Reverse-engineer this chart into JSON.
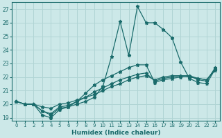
{
  "xlabel": "Humidex (Indice chaleur)",
  "bg_color": "#cce8e8",
  "grid_color": "#b0d4d4",
  "line_color": "#1a6b6b",
  "xlim": [
    -0.5,
    23.5
  ],
  "ylim": [
    18.8,
    27.5
  ],
  "xticks": [
    0,
    1,
    2,
    3,
    4,
    5,
    6,
    7,
    8,
    9,
    10,
    11,
    12,
    13,
    14,
    15,
    16,
    17,
    18,
    19,
    20,
    21,
    22,
    23
  ],
  "yticks": [
    19,
    20,
    21,
    22,
    23,
    24,
    25,
    26,
    27
  ],
  "series": [
    [
      20.2,
      20.0,
      20.0,
      19.2,
      19.0,
      19.6,
      19.8,
      20.0,
      20.2,
      20.5,
      21.3,
      23.5,
      26.1,
      23.6,
      27.2,
      26.0,
      26.0,
      25.5,
      24.9,
      23.1,
      21.9,
      21.6,
      21.5,
      22.6
    ],
    [
      20.2,
      20.0,
      20.0,
      19.5,
      19.2,
      19.7,
      19.8,
      20.2,
      20.8,
      21.4,
      21.8,
      22.1,
      22.4,
      22.7,
      22.9,
      22.9,
      21.6,
      21.8,
      21.9,
      22.0,
      22.1,
      21.8,
      21.7,
      22.7
    ],
    [
      20.2,
      20.0,
      20.0,
      19.5,
      19.3,
      19.8,
      19.9,
      20.2,
      20.5,
      20.9,
      21.2,
      21.5,
      21.8,
      22.0,
      22.2,
      22.3,
      21.7,
      21.9,
      22.0,
      22.1,
      22.1,
      21.9,
      21.8,
      22.6
    ],
    [
      20.2,
      20.0,
      20.0,
      19.8,
      19.7,
      20.0,
      20.1,
      20.3,
      20.5,
      20.7,
      21.0,
      21.3,
      21.5,
      21.8,
      22.0,
      22.1,
      21.8,
      22.0,
      22.1,
      22.1,
      22.0,
      21.9,
      21.8,
      22.5
    ]
  ],
  "markersize": 3.5,
  "linewidth": 0.9
}
